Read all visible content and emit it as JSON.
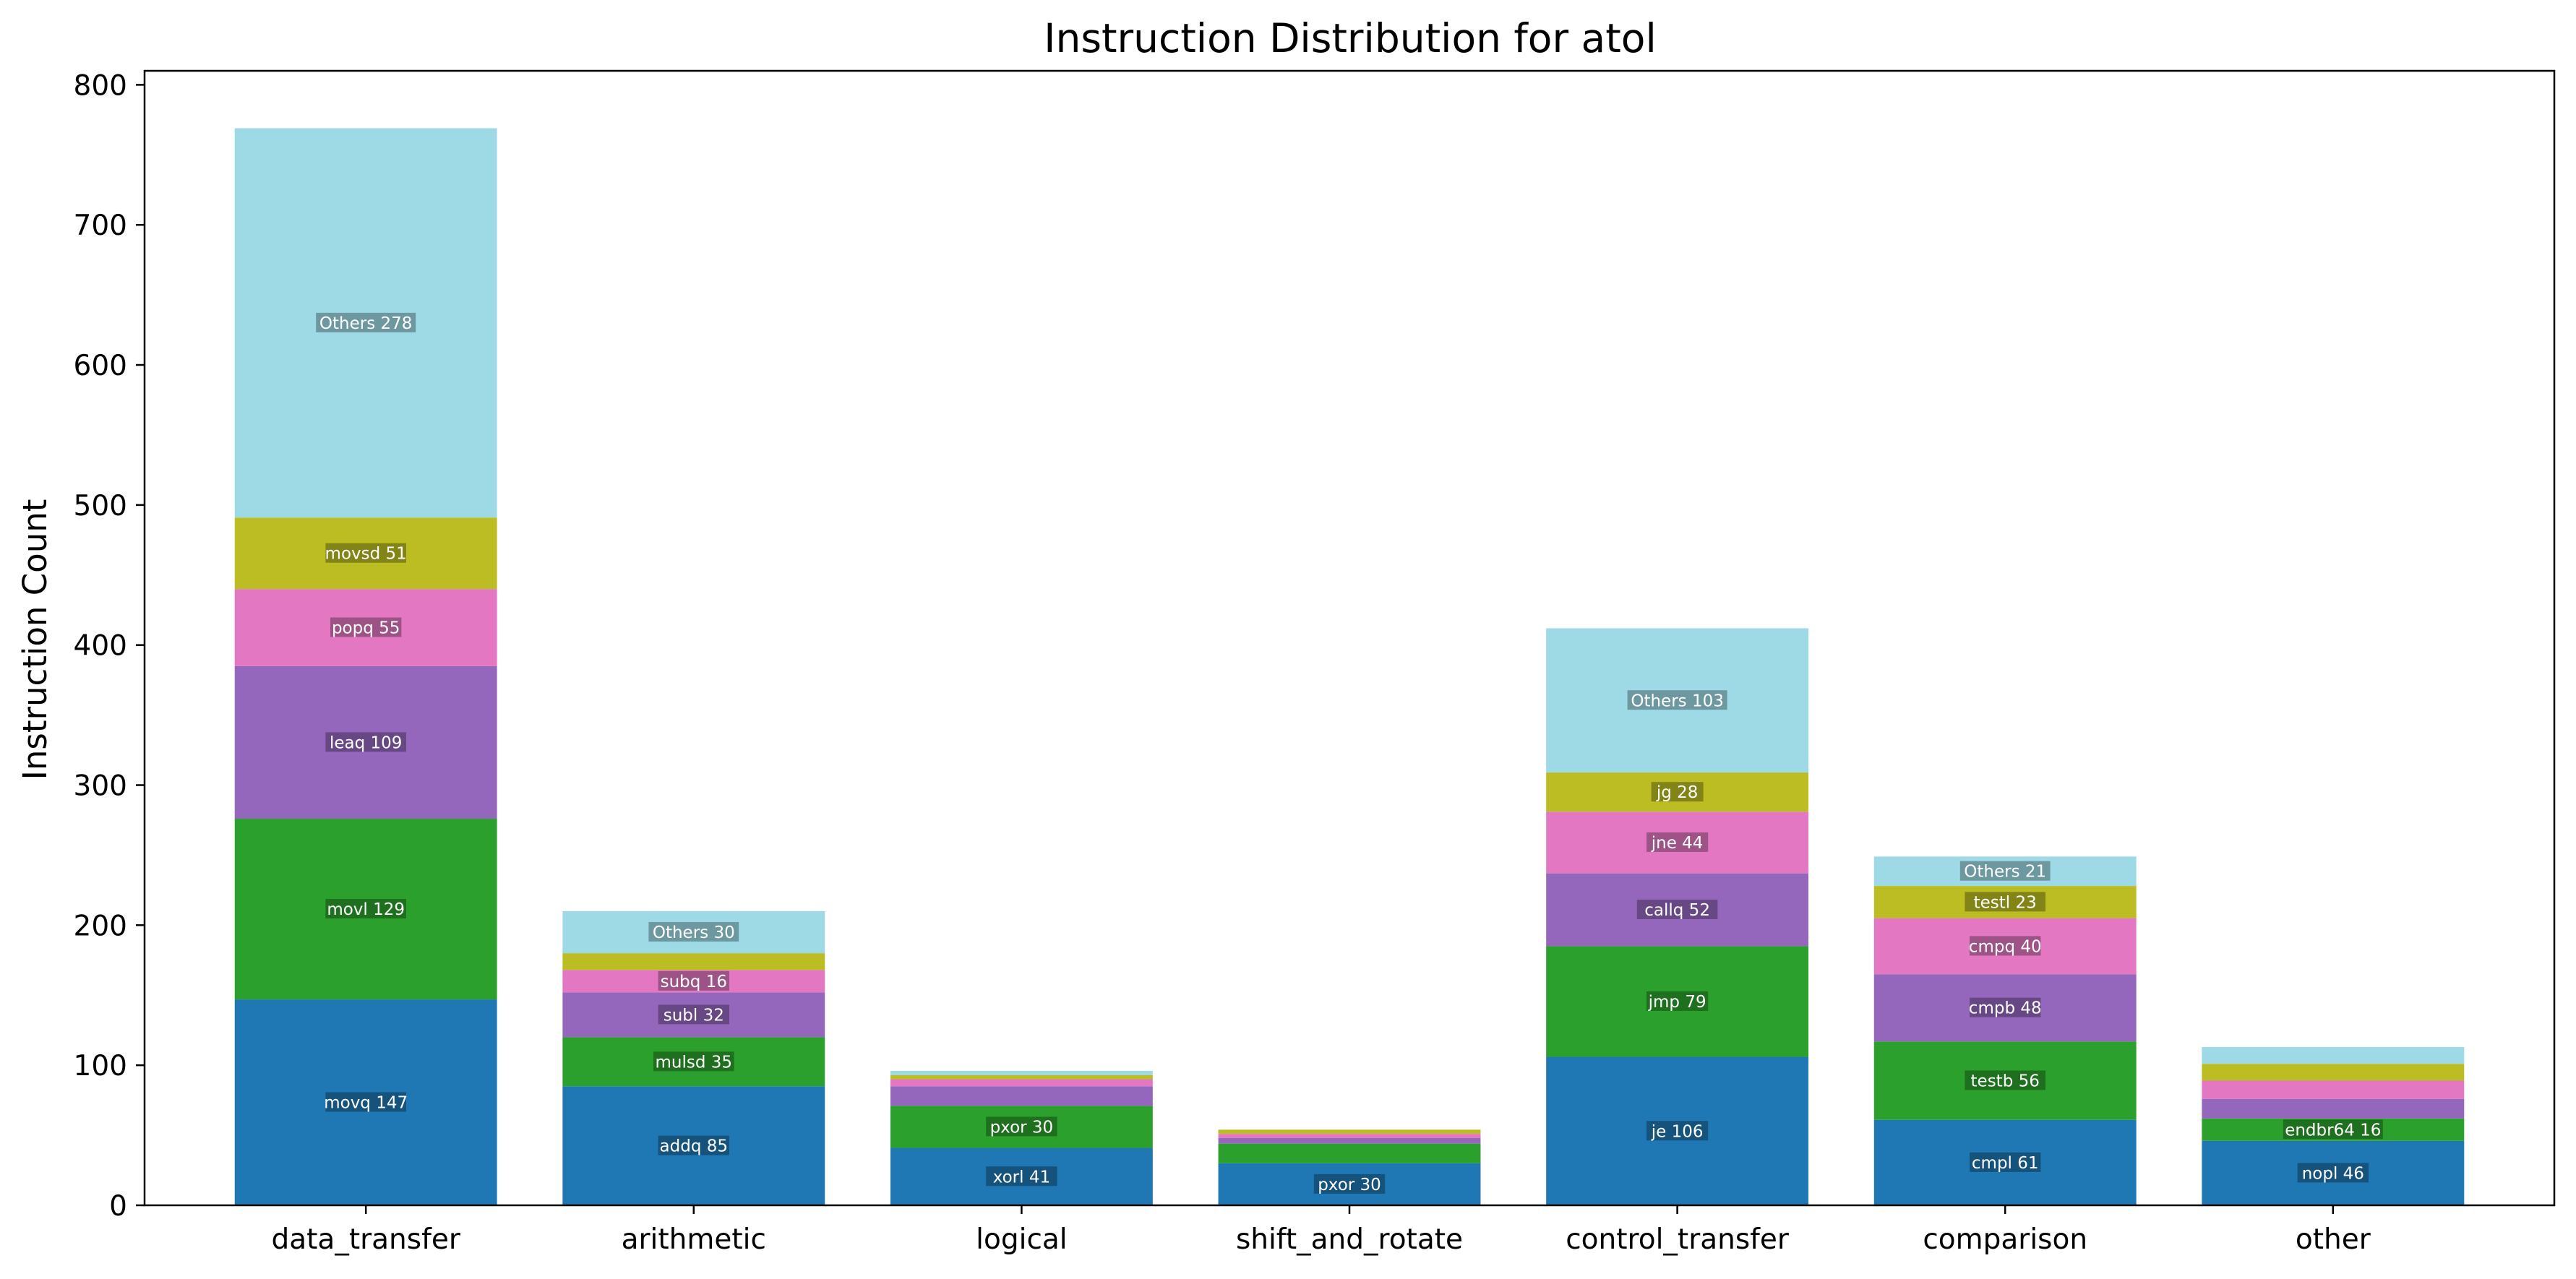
{
  "chart_data": {
    "type": "bar",
    "stacked": true,
    "title": "Instruction Distribution for atol",
    "xlabel": "",
    "ylabel": "Instruction Count",
    "ylim": [
      0,
      810
    ],
    "yticks": [
      0,
      100,
      200,
      300,
      400,
      500,
      600,
      700,
      800
    ],
    "grid": false,
    "categories": [
      "data_transfer",
      "arithmetic",
      "logical",
      "shift_and_rotate",
      "control_transfer",
      "comparison",
      "other"
    ],
    "colors": [
      "#1f77b4",
      "#2ca02c",
      "#9467bd",
      "#e377c2",
      "#bcbd22",
      "#9edae5"
    ],
    "bars": [
      {
        "category": "data_transfer",
        "segments": [
          {
            "label": "movq 147",
            "value": 147
          },
          {
            "label": "movl 129",
            "value": 129
          },
          {
            "label": "leaq 109",
            "value": 109
          },
          {
            "label": "popq 55",
            "value": 55
          },
          {
            "label": "movsd 51",
            "value": 51
          },
          {
            "label": "Others 278",
            "value": 278
          }
        ]
      },
      {
        "category": "arithmetic",
        "segments": [
          {
            "label": "addq 85",
            "value": 85
          },
          {
            "label": "mulsd 35",
            "value": 35
          },
          {
            "label": "subl 32",
            "value": 32
          },
          {
            "label": "subq 16",
            "value": 16
          },
          {
            "label": "",
            "value": 12
          },
          {
            "label": "Others 30",
            "value": 30
          }
        ]
      },
      {
        "category": "logical",
        "segments": [
          {
            "label": "xorl 41",
            "value": 41
          },
          {
            "label": "pxor 30",
            "value": 30
          },
          {
            "label": "",
            "value": 14
          },
          {
            "label": "",
            "value": 5
          },
          {
            "label": "",
            "value": 3
          },
          {
            "label": "",
            "value": 3
          }
        ]
      },
      {
        "category": "shift_and_rotate",
        "segments": [
          {
            "label": "pxor 30",
            "value": 30
          },
          {
            "label": "",
            "value": 14
          },
          {
            "label": "",
            "value": 4
          },
          {
            "label": "",
            "value": 3
          },
          {
            "label": "",
            "value": 3
          },
          {
            "label": "",
            "value": 0
          }
        ]
      },
      {
        "category": "control_transfer",
        "segments": [
          {
            "label": "je 106",
            "value": 106
          },
          {
            "label": "jmp 79",
            "value": 79
          },
          {
            "label": "callq 52",
            "value": 52
          },
          {
            "label": "jne 44",
            "value": 44
          },
          {
            "label": "jg 28",
            "value": 28
          },
          {
            "label": "Others 103",
            "value": 103
          }
        ]
      },
      {
        "category": "comparison",
        "segments": [
          {
            "label": "cmpl 61",
            "value": 61
          },
          {
            "label": "testb 56",
            "value": 56
          },
          {
            "label": "cmpb 48",
            "value": 48
          },
          {
            "label": "cmpq 40",
            "value": 40
          },
          {
            "label": "testl 23",
            "value": 23
          },
          {
            "label": "Others 21",
            "value": 21
          }
        ]
      },
      {
        "category": "other",
        "segments": [
          {
            "label": "nopl 46",
            "value": 46
          },
          {
            "label": "endbr64 16",
            "value": 16
          },
          {
            "label": "",
            "value": 14
          },
          {
            "label": "",
            "value": 13
          },
          {
            "label": "",
            "value": 12
          },
          {
            "label": "",
            "value": 12
          }
        ]
      }
    ]
  }
}
